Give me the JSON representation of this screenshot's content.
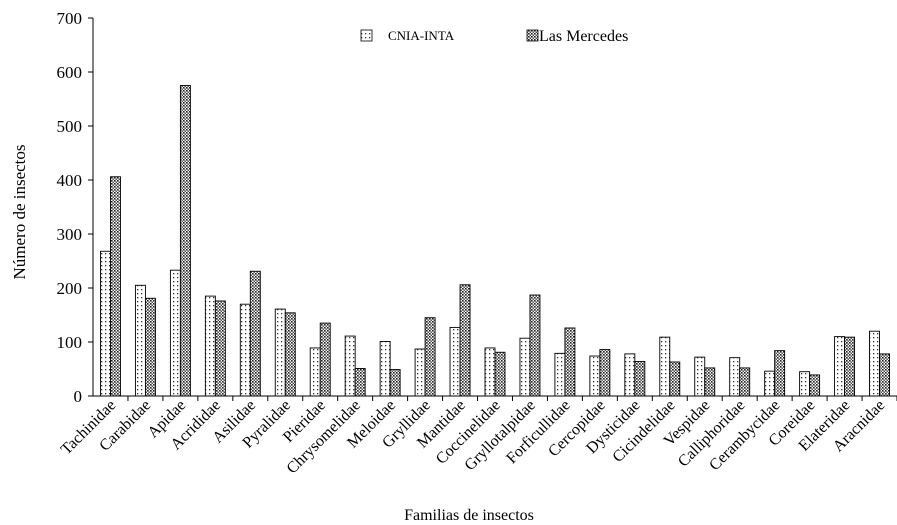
{
  "chart_data": {
    "type": "bar",
    "title": "",
    "xlabel": "Familias de insectos",
    "ylabel": "Número de insectos",
    "ylim": [
      0,
      700
    ],
    "yticks": [
      0,
      100,
      200,
      300,
      400,
      500,
      600,
      700
    ],
    "grid": false,
    "legend_position": "top-center",
    "categories": [
      "Tachinidae",
      "Carabidae",
      "Apidae",
      "Acrididae",
      "Asilidae",
      "Pyralidae",
      "Pieridae",
      "Chrysomelidae",
      "Meloidae",
      "Gryllidae",
      "Mantidae",
      "Coccinelidae",
      "Gryllotalpidae",
      "Forficullidae",
      "Cercopidae",
      "Dysticidae",
      "Cicindelidae",
      "Vespidae",
      "Calliphoridae",
      "Cerambycidae",
      "Coreidae",
      "Elateridae",
      "Aracnidae"
    ],
    "series": [
      {
        "name": "CNIA-INTA",
        "pattern": "sparse-dots",
        "values": [
          268,
          205,
          233,
          185,
          170,
          161,
          89,
          111,
          101,
          87,
          127,
          89,
          107,
          79,
          74,
          78,
          109,
          72,
          71,
          46,
          45,
          110,
          120
        ]
      },
      {
        "name": "Las Mercedes",
        "pattern": "dense-dots",
        "values": [
          406,
          181,
          575,
          176,
          231,
          154,
          135,
          51,
          49,
          145,
          206,
          81,
          187,
          126,
          86,
          64,
          63,
          52,
          52,
          84,
          39,
          109,
          78
        ]
      }
    ]
  }
}
